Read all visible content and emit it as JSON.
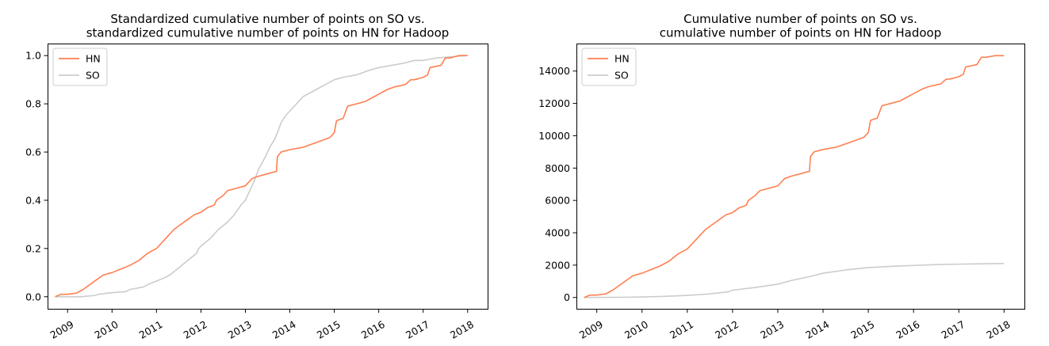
{
  "chart_data": [
    {
      "type": "line",
      "title": "Standardized cumulative number of points on SO vs.\nstandardized cumulative number of points on HN for Hadoop",
      "xlabel": "",
      "ylabel": "",
      "x_ticks": [
        "2009",
        "2010",
        "2011",
        "2012",
        "2013",
        "2014",
        "2015",
        "2016",
        "2017",
        "2018"
      ],
      "y_ticks": [
        "0.0",
        "0.2",
        "0.4",
        "0.6",
        "0.8",
        "1.0"
      ],
      "xlim": [
        2008.55,
        2018.45
      ],
      "ylim": [
        -0.05,
        1.05
      ],
      "grid": false,
      "legend": "top-left",
      "series": [
        {
          "name": "HN",
          "color": "#ff7f50",
          "x": [
            2008.72,
            2008.85,
            2009.0,
            2009.2,
            2009.35,
            2009.5,
            2009.65,
            2009.8,
            2010.0,
            2010.2,
            2010.4,
            2010.6,
            2010.8,
            2011.0,
            2011.2,
            2011.4,
            2011.55,
            2011.7,
            2011.85,
            2012.0,
            2012.15,
            2012.3,
            2012.35,
            2012.5,
            2012.6,
            2012.8,
            2013.0,
            2013.1,
            2013.15,
            2013.3,
            2013.5,
            2013.7,
            2013.72,
            2013.8,
            2014.0,
            2014.3,
            2014.6,
            2014.9,
            2015.0,
            2015.05,
            2015.2,
            2015.3,
            2015.5,
            2015.7,
            2015.9,
            2016.0,
            2016.2,
            2016.35,
            2016.6,
            2016.72,
            2016.8,
            2017.0,
            2017.1,
            2017.15,
            2017.4,
            2017.5,
            2017.6,
            2017.8,
            2018.0
          ],
          "y": [
            0.0,
            0.01,
            0.01,
            0.015,
            0.03,
            0.05,
            0.07,
            0.09,
            0.1,
            0.115,
            0.13,
            0.15,
            0.18,
            0.2,
            0.24,
            0.28,
            0.3,
            0.32,
            0.34,
            0.35,
            0.37,
            0.38,
            0.4,
            0.42,
            0.44,
            0.45,
            0.46,
            0.48,
            0.49,
            0.5,
            0.51,
            0.52,
            0.58,
            0.6,
            0.61,
            0.62,
            0.64,
            0.66,
            0.68,
            0.73,
            0.74,
            0.79,
            0.8,
            0.81,
            0.83,
            0.84,
            0.86,
            0.87,
            0.88,
            0.9,
            0.9,
            0.91,
            0.92,
            0.95,
            0.96,
            0.99,
            0.99,
            1.0,
            1.0
          ]
        },
        {
          "name": "SO",
          "color": "#cccccc",
          "x": [
            2008.72,
            2009.0,
            2009.3,
            2009.6,
            2009.7,
            2009.9,
            2010.2,
            2010.3,
            2010.4,
            2010.7,
            2010.8,
            2011.0,
            2011.2,
            2011.3,
            2011.5,
            2011.7,
            2011.9,
            2011.95,
            2012.0,
            2012.2,
            2012.4,
            2012.6,
            2012.75,
            2012.9,
            2013.0,
            2013.1,
            2013.2,
            2013.3,
            2013.45,
            2013.55,
            2013.65,
            2013.72,
            2013.8,
            2013.9,
            2014.0,
            2014.15,
            2014.3,
            2014.6,
            2014.8,
            2015.0,
            2015.2,
            2015.5,
            2015.8,
            2016.0,
            2016.3,
            2016.6,
            2016.8,
            2017.0,
            2017.3,
            2017.6,
            2018.0
          ],
          "y": [
            0.0,
            0.0,
            0.0,
            0.005,
            0.01,
            0.015,
            0.02,
            0.02,
            0.03,
            0.04,
            0.05,
            0.065,
            0.08,
            0.09,
            0.12,
            0.15,
            0.18,
            0.2,
            0.21,
            0.24,
            0.28,
            0.31,
            0.34,
            0.38,
            0.4,
            0.44,
            0.48,
            0.53,
            0.58,
            0.62,
            0.65,
            0.68,
            0.72,
            0.75,
            0.77,
            0.8,
            0.83,
            0.86,
            0.88,
            0.9,
            0.91,
            0.92,
            0.94,
            0.95,
            0.96,
            0.97,
            0.98,
            0.98,
            0.99,
            0.995,
            1.0
          ]
        }
      ]
    },
    {
      "type": "line",
      "title": "Cumulative number of points on SO vs.\ncumulative number of points on HN for Hadoop",
      "xlabel": "",
      "ylabel": "",
      "x_ticks": [
        "2009",
        "2010",
        "2011",
        "2012",
        "2013",
        "2014",
        "2015",
        "2016",
        "2017",
        "2018"
      ],
      "y_ticks": [
        "0",
        "2000",
        "4000",
        "6000",
        "8000",
        "10000",
        "12000",
        "14000"
      ],
      "xlim": [
        2008.55,
        2018.45
      ],
      "ylim": [
        -700,
        15700
      ],
      "grid": false,
      "legend": "top-left",
      "series": [
        {
          "name": "HN",
          "color": "#ff7f50",
          "x": [
            2008.72,
            2008.85,
            2009.0,
            2009.2,
            2009.35,
            2009.5,
            2009.65,
            2009.8,
            2010.0,
            2010.2,
            2010.4,
            2010.6,
            2010.8,
            2011.0,
            2011.2,
            2011.4,
            2011.55,
            2011.7,
            2011.85,
            2012.0,
            2012.15,
            2012.3,
            2012.35,
            2012.5,
            2012.6,
            2012.8,
            2013.0,
            2013.1,
            2013.15,
            2013.3,
            2013.5,
            2013.7,
            2013.72,
            2013.8,
            2014.0,
            2014.3,
            2014.6,
            2014.9,
            2015.0,
            2015.05,
            2015.2,
            2015.3,
            2015.5,
            2015.7,
            2015.9,
            2016.0,
            2016.2,
            2016.35,
            2016.6,
            2016.72,
            2016.8,
            2017.0,
            2017.1,
            2017.15,
            2017.4,
            2017.5,
            2017.6,
            2017.8,
            2018.0
          ],
          "y": [
            0,
            150,
            150,
            225,
            450,
            750,
            1050,
            1350,
            1500,
            1725,
            1950,
            2250,
            2700,
            3000,
            3600,
            4200,
            4500,
            4800,
            5100,
            5250,
            5550,
            5700,
            6000,
            6300,
            6600,
            6750,
            6900,
            7200,
            7350,
            7500,
            7650,
            7800,
            8700,
            9000,
            9150,
            9300,
            9600,
            9900,
            10200,
            10950,
            11100,
            11850,
            12000,
            12150,
            12450,
            12600,
            12900,
            13050,
            13200,
            13500,
            13500,
            13650,
            13800,
            14250,
            14400,
            14850,
            14850,
            14950,
            14950
          ]
        },
        {
          "name": "SO",
          "color": "#cccccc",
          "x": [
            2008.72,
            2009.5,
            2010.0,
            2010.5,
            2011.0,
            2011.5,
            2011.9,
            2012.0,
            2012.5,
            2013.0,
            2013.3,
            2013.72,
            2014.0,
            2014.5,
            2015.0,
            2015.5,
            2016.0,
            2016.5,
            2017.0,
            2017.5,
            2018.0
          ],
          "y": [
            0,
            10,
            30,
            70,
            130,
            220,
            350,
            450,
            620,
            820,
            1050,
            1300,
            1500,
            1700,
            1850,
            1920,
            1980,
            2030,
            2060,
            2080,
            2100
          ]
        }
      ]
    }
  ]
}
